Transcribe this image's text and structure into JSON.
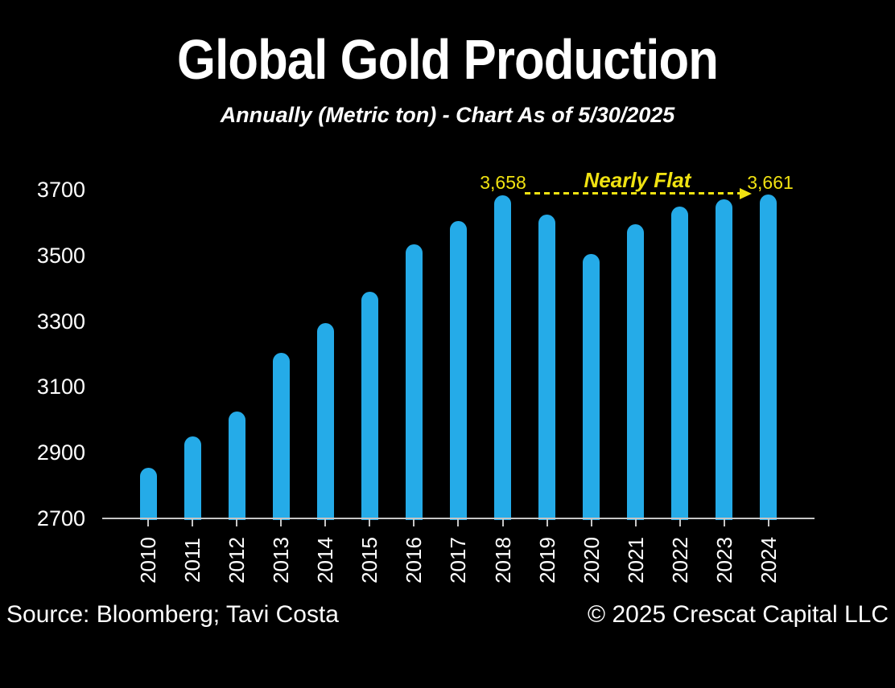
{
  "title": "Global Gold Production",
  "subtitle": "Annually (Metric ton) - Chart As of 5/30/2025",
  "annotation": {
    "start_value_label": "3,658",
    "end_value_label": "3,661",
    "text": "Nearly Flat"
  },
  "footer": {
    "source": "Source: Bloomberg; Tavi Costa",
    "copyright": "© 2025 Crescat Capital LLC"
  },
  "colors": {
    "background": "#000000",
    "bar": "#25abe8",
    "annotation": "#f0e211",
    "axis": "#c6c6c6",
    "text": "#ffffff"
  },
  "chart_data": {
    "type": "bar",
    "title": "Global Gold Production",
    "subtitle": "Annually (Metric ton) - Chart As of 5/30/2025",
    "categories": [
      "2010",
      "2011",
      "2012",
      "2013",
      "2014",
      "2015",
      "2016",
      "2017",
      "2018",
      "2019",
      "2020",
      "2021",
      "2022",
      "2023",
      "2024"
    ],
    "values": [
      2830,
      2925,
      3000,
      3180,
      3270,
      3365,
      3510,
      3580,
      3658,
      3600,
      3480,
      3570,
      3625,
      3645,
      3661
    ],
    "labeled_points": [
      {
        "category": "2018",
        "label": "3,658"
      },
      {
        "category": "2024",
        "label": "3,661"
      }
    ],
    "annotation": {
      "text": "Nearly Flat",
      "from": "2018",
      "to": "2024",
      "style": "dashed-arrow"
    },
    "xlabel": "",
    "ylabel": "",
    "ylim": [
      2700,
      3700
    ],
    "yticks": [
      2700,
      2900,
      3100,
      3300,
      3500,
      3700
    ],
    "grid": false,
    "legend": false,
    "bar_color": "#25abe8",
    "background": "#000000"
  }
}
